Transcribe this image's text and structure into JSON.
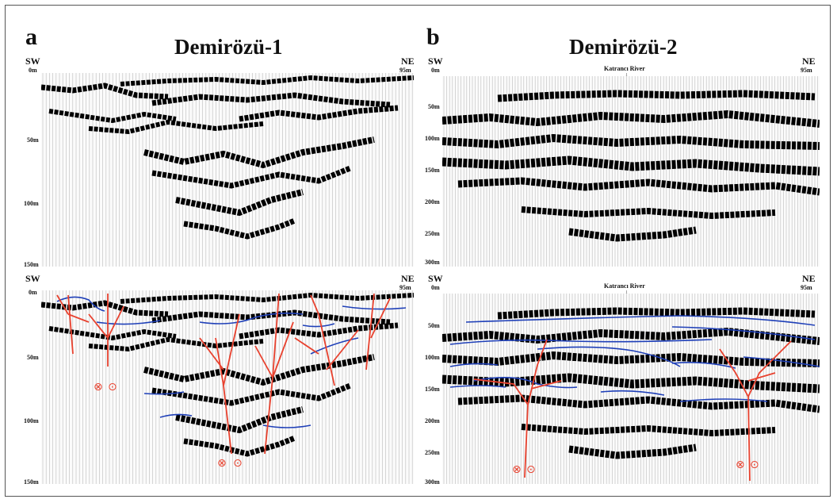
{
  "panels": [
    {
      "letter": "a",
      "title": "Demirözü-1",
      "sw": "SW",
      "ne": "NE",
      "start": "0m",
      "end": "95m",
      "depth_ticks": [
        "50m",
        "100m",
        "150m"
      ]
    },
    {
      "letter": "b",
      "title": "Demirözü-2",
      "sw": "SW",
      "ne": "NE",
      "start": "0m",
      "end": "95m",
      "river": "Katrancı River",
      "depth_ticks": [
        "50m",
        "100m",
        "150m",
        "200m",
        "250m",
        "300m"
      ]
    }
  ],
  "symbols": {
    "into_page": "⊗",
    "out_of_page": "⊙",
    "arrow_down": "↓"
  },
  "colors": {
    "fault": "#e8422f",
    "horizon": "#1e3fb8",
    "reflector": "#000000",
    "grid": "#bcbcbc"
  }
}
